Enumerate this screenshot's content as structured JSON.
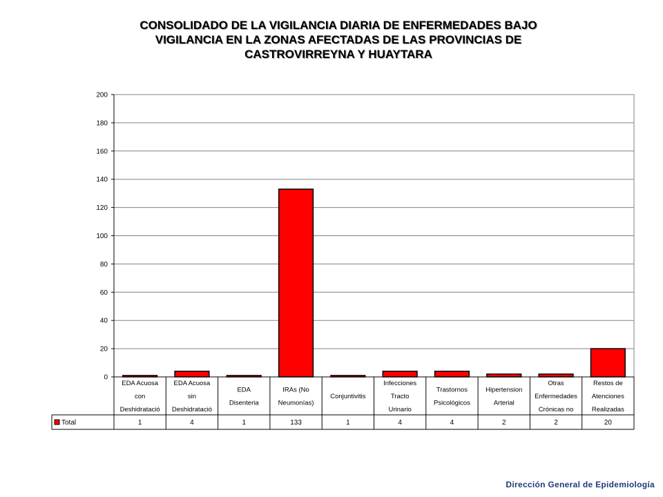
{
  "chart_data": {
    "type": "bar",
    "title_lines": [
      "CONSOLIDADO DE LA VIGILANCIA DIARIA DE ENFERMEDADES BAJO",
      "VIGILANCIA EN LA ZONAS AFECTADAS DE LAS PROVINCIAS DE",
      "CASTROVIRREYNA Y HUAYTARA"
    ],
    "categories": [
      [
        "EDA Acuosa",
        "con",
        "Deshidratació"
      ],
      [
        "EDA Acuosa",
        "sin",
        "Deshidratació"
      ],
      [
        "EDA",
        "Disenteria"
      ],
      [
        "IRAs (No",
        "Neumonías)"
      ],
      [
        "Conjuntivitis"
      ],
      [
        "Infecciones",
        "Tracto",
        "Urinario"
      ],
      [
        "Trastornos",
        "Psicológicos"
      ],
      [
        "Hipertension",
        "Arterial"
      ],
      [
        "Otras",
        "Enfermedades",
        "Crónicas no"
      ],
      [
        "Restos de",
        "Atenciones",
        "Realizadas"
      ]
    ],
    "series": [
      {
        "name": "Total",
        "color": "#ff0000",
        "values": [
          1,
          4,
          1,
          133,
          1,
          4,
          4,
          2,
          2,
          20
        ]
      }
    ],
    "value_labels": [
      "1",
      "4",
      "1",
      "133",
      "1",
      "4",
      "4",
      "2",
      "2",
      "20"
    ],
    "ylim": [
      0,
      200
    ],
    "yticks": [
      0,
      20,
      40,
      60,
      80,
      100,
      120,
      140,
      160,
      180,
      200
    ],
    "grid": true,
    "legend": "data-table-left"
  },
  "footer": "Dirección General de Epidemiología"
}
